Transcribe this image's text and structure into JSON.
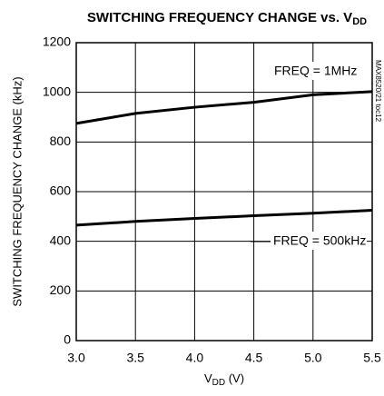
{
  "chart_data": {
    "type": "line",
    "title_parts": [
      "SWITCHING FREQUENCY CHANGE vs. V",
      "DD"
    ],
    "ylabel": "SWITCHING FREQUENCY CHANGE (kHz)",
    "xlabel_parts": [
      "V",
      "DD",
      " (V)"
    ],
    "watermark": "MAX8520/21 toc12",
    "x": [
      3,
      3.5,
      4,
      4.5,
      5,
      5.5
    ],
    "series": [
      {
        "name": "FREQ = 1MHz",
        "color": "#000000",
        "values": [
          875,
          915,
          940,
          960,
          990,
          1003
        ]
      },
      {
        "name": "FREQ = 500kHz",
        "color": "#000000",
        "values": [
          465,
          480,
          492,
          503,
          513,
          525
        ]
      }
    ],
    "xlim": [
      3,
      5.5
    ],
    "xticks": [
      {
        "value": 3,
        "label": "3.0"
      },
      3.5,
      {
        "value": 4,
        "label": "4.0"
      },
      4.5,
      {
        "value": 5,
        "label": "5.0"
      },
      5.5
    ],
    "ylim": [
      0,
      1200
    ],
    "yticks": [
      0,
      200,
      400,
      600,
      800,
      1000,
      1200
    ],
    "grid": true
  }
}
